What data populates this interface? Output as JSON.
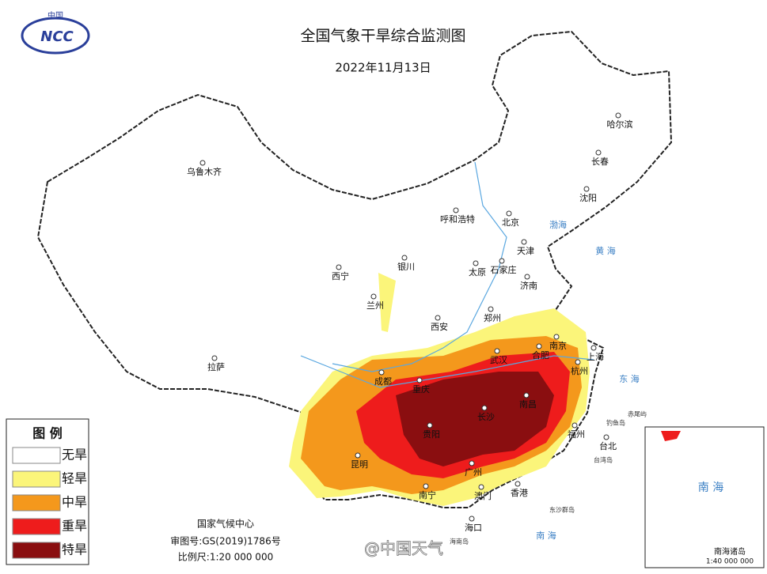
{
  "logo": {
    "top": "中国",
    "mark": "NCC"
  },
  "header": {
    "title": "全国气象干旱综合监测图",
    "date": "2022年11月13日"
  },
  "legend": {
    "title": "图 例",
    "items": [
      {
        "label": "无旱",
        "color": "#ffffff"
      },
      {
        "label": "轻旱",
        "color": "#fbf57a"
      },
      {
        "label": "中旱",
        "color": "#f4981c"
      },
      {
        "label": "重旱",
        "color": "#ee1c1c"
      },
      {
        "label": "特旱",
        "color": "#8a0e10"
      }
    ]
  },
  "cities": [
    "乌鲁木齐",
    "哈尔滨",
    "长春",
    "沈阳",
    "呼和浩特",
    "北京",
    "天津",
    "银川",
    "西宁",
    "太原",
    "石家庄",
    "济南",
    "兰州",
    "郑州",
    "西安",
    "拉萨",
    "南京",
    "合肥",
    "上海",
    "武汉",
    "杭州",
    "成都",
    "重庆",
    "长沙",
    "南昌",
    "贵阳",
    "福州",
    "台北",
    "昆明",
    "广州",
    "南宁",
    "澳门",
    "香港",
    "海口"
  ],
  "seas": [
    "渤海",
    "黄 海",
    "东 海",
    "南 海",
    "台湾岛",
    "海南岛",
    "东沙群岛",
    "钓鱼岛",
    "赤尾屿"
  ],
  "footer": {
    "org": "国家气候中心",
    "approval": "审图号:GS(2019)1786号",
    "scale": "比例尺:1:20 000 000"
  },
  "inset": {
    "sea": "南 海",
    "label": "南海诸岛",
    "scale": "1:40 000 000"
  },
  "watermark": "@中国天气"
}
